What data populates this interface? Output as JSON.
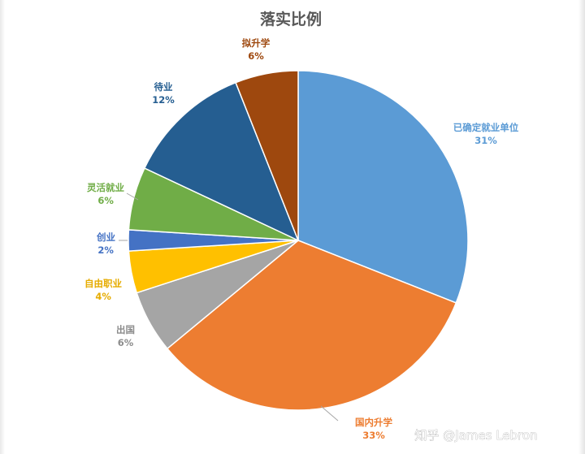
{
  "chart_data": {
    "type": "pie",
    "title": "落实比例",
    "slices": [
      {
        "label": "已确定就业单位",
        "value": 31,
        "value_label": "31%",
        "color": "#5B9BD5"
      },
      {
        "label": "国内升学",
        "value": 33,
        "value_label": "33%",
        "color": "#ED7D31"
      },
      {
        "label": "出国",
        "value": 6,
        "value_label": "6%",
        "color": "#A5A5A5"
      },
      {
        "label": "自由职业",
        "value": 4,
        "value_label": "4%",
        "color": "#FFC000"
      },
      {
        "label": "创业",
        "value": 2,
        "value_label": "2%",
        "color": "#4472C4"
      },
      {
        "label": "灵活就业",
        "value": 6,
        "value_label": "6%",
        "color": "#70AD47"
      },
      {
        "label": "待业",
        "value": 12,
        "value_label": "12%",
        "color": "#255E91"
      },
      {
        "label": "拟升学",
        "value": 6,
        "value_label": "6%",
        "color": "#9E480E"
      }
    ],
    "start_angle_deg": 0,
    "direction": "clockwise",
    "legend": "none"
  },
  "watermark": {
    "text": "知乎 @James Lebron"
  }
}
